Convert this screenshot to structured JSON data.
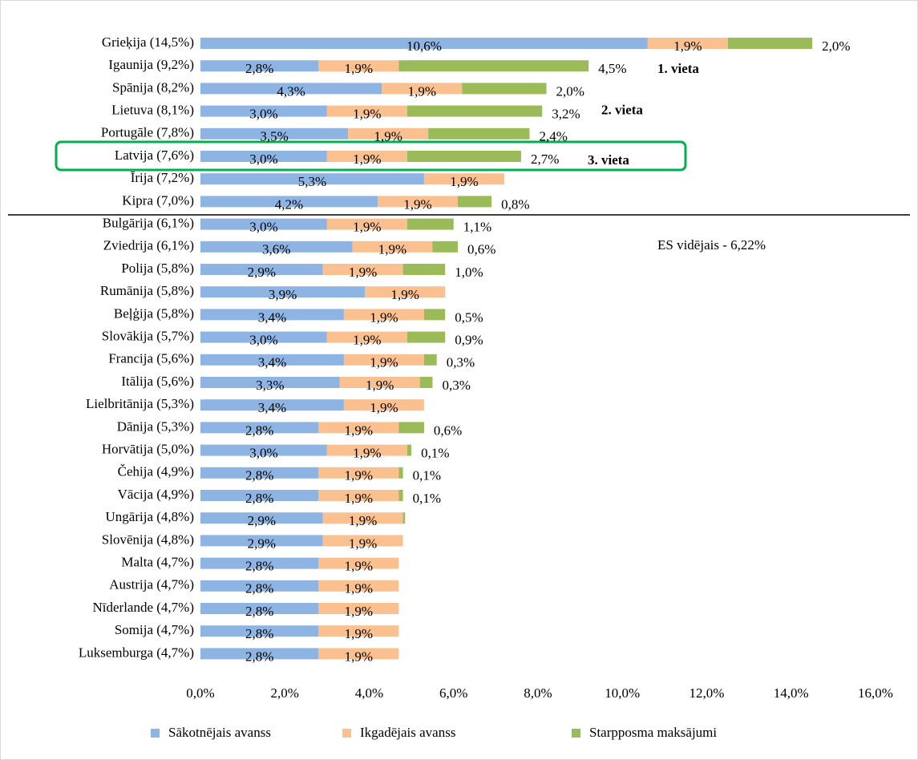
{
  "chart_data": {
    "type": "stacked-barh",
    "categories": [
      "Grieķija (14,5%)",
      "Igaunija (9,2%)",
      "Spānija (8,2%)",
      "Lietuva (8,1%)",
      "Portugāle (7,8%)",
      "Latvija (7,6%)",
      "Īrija (7,2%)",
      "Kipra (7,0%)",
      "Bulgārija (6,1%)",
      "Zviedrija (6,1%)",
      "Polija (5,8%)",
      "Rumānija (5,8%)",
      "Beļģija (5,8%)",
      "Slovākija (5,7%)",
      "Francija (5,6%)",
      "Itālija (5,6%)",
      "Lielbritānija (5,3%)",
      "Dānija (5,3%)",
      "Horvātija (5,0%)",
      "Čehija (4,9%)",
      "Vācija (4,9%)",
      "Ungārija (4,8%)",
      "Slovēnija (4,8%)",
      "Malta (4,7%)",
      "Austrija (4,7%)",
      "Nīderlande (4,7%)",
      "Somija (4,7%)",
      "Luksemburga (4,7%)"
    ],
    "series": [
      {
        "name": "Sākotnējais avanss",
        "color": "#8eb4e3",
        "values": [
          10.6,
          2.8,
          4.3,
          3.0,
          3.5,
          3.0,
          5.3,
          4.2,
          3.0,
          3.6,
          2.9,
          3.9,
          3.4,
          3.0,
          3.4,
          3.3,
          3.4,
          2.8,
          3.0,
          2.8,
          2.8,
          2.9,
          2.9,
          2.8,
          2.8,
          2.8,
          2.8,
          2.8
        ],
        "value_labels": [
          "10,6%",
          "2,8%",
          "4,3%",
          "3,0%",
          "3,5%",
          "3,0%",
          "5,3%",
          "4,2%",
          "3,0%",
          "3,6%",
          "2,9%",
          "3,9%",
          "3,4%",
          "3,0%",
          "3,4%",
          "3,3%",
          "3,4%",
          "2,8%",
          "3,0%",
          "2,8%",
          "2,8%",
          "2,9%",
          "2,9%",
          "2,8%",
          "2,8%",
          "2,8%",
          "2,8%",
          "2,8%"
        ]
      },
      {
        "name": "Ikgadējais avanss",
        "color": "#fac090",
        "values": [
          1.9,
          1.9,
          1.9,
          1.9,
          1.9,
          1.9,
          1.9,
          1.9,
          1.9,
          1.9,
          1.9,
          1.9,
          1.9,
          1.9,
          1.9,
          1.9,
          1.9,
          1.9,
          1.9,
          1.9,
          1.9,
          1.9,
          1.9,
          1.9,
          1.9,
          1.9,
          1.9,
          1.9
        ],
        "value_labels": [
          "1,9%",
          "1,9%",
          "1,9%",
          "1,9%",
          "1,9%",
          "1,9%",
          "1,9%",
          "1,9%",
          "1,9%",
          "1,9%",
          "1,9%",
          "1,9%",
          "1,9%",
          "1,9%",
          "1,9%",
          "1,9%",
          "1,9%",
          "1,9%",
          "1,9%",
          "1,9%",
          "1,9%",
          "1,9%",
          "1,9%",
          "1,9%",
          "1,9%",
          "1,9%",
          "1,9%",
          "1,9%"
        ]
      },
      {
        "name": "Starpposma maksājumi",
        "color": "#9bbb59",
        "values": [
          2.0,
          4.5,
          2.0,
          3.2,
          2.4,
          2.7,
          null,
          0.8,
          1.1,
          0.6,
          1.0,
          null,
          0.5,
          0.9,
          0.3,
          0.3,
          null,
          0.6,
          0.1,
          0.1,
          0.1,
          0.05,
          null,
          null,
          null,
          null,
          null,
          null
        ],
        "value_labels": [
          "2,0%",
          "4,5%",
          "2,0%",
          "3,2%",
          "2,4%",
          "2,7%",
          null,
          "0,8%",
          "1,1%",
          "0,6%",
          "1,0%",
          null,
          "0,5%",
          "0,9%",
          "0,3%",
          "0,3%",
          null,
          "0,6%",
          "0,1%",
          "0,1%",
          "0,1%",
          null,
          null,
          null,
          null,
          null,
          null,
          null
        ]
      }
    ],
    "xlim": [
      0,
      16
    ],
    "xticks": [
      {
        "value": 0,
        "label": "0,0%"
      },
      {
        "value": 2,
        "label": "2,0%"
      },
      {
        "value": 4,
        "label": "4,0%"
      },
      {
        "value": 6,
        "label": "6,0%"
      },
      {
        "value": 8,
        "label": "8,0%"
      },
      {
        "value": 10,
        "label": "10,0%"
      },
      {
        "value": 12,
        "label": "12,0%"
      },
      {
        "value": 14,
        "label": "14,0%"
      },
      {
        "value": 16,
        "label": "16,0%"
      }
    ],
    "annotations": [
      "1. vieta",
      "2. vieta",
      "3. vieta",
      "ES vidējais - 6,22%"
    ],
    "legend": "bottom",
    "grid": false
  }
}
